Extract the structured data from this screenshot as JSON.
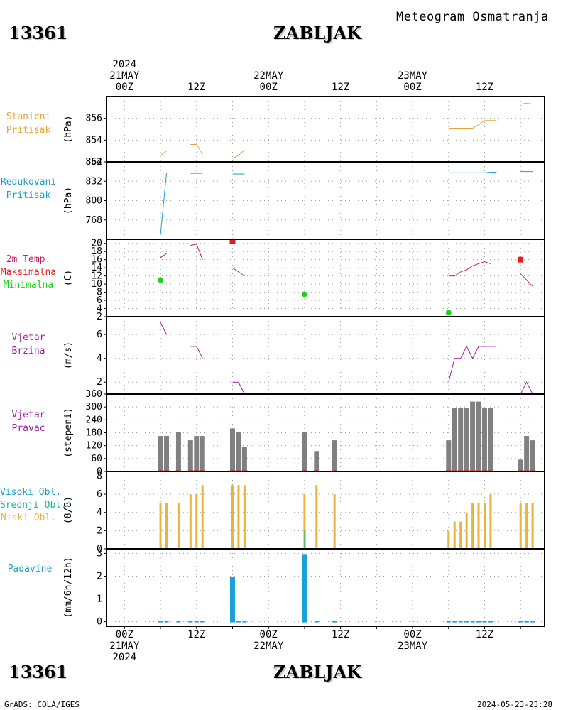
{
  "header": {
    "station_id": "13361",
    "station_name": "ZABLJAK",
    "subtitle": "Meteogram Osmatranja"
  },
  "footer": {
    "station_id": "13361",
    "station_name": "ZABLJAK",
    "credit": "GrADS: COLA/IGES",
    "timestamp": "2024-05-23-23:28"
  },
  "time_axis": {
    "start_year": "2024",
    "top_dates": [
      {
        "hour": 0,
        "date": "21MAY",
        "year": "2024"
      },
      {
        "hour": 24,
        "date": "22MAY",
        "year": ""
      },
      {
        "hour": 48,
        "date": "23MAY",
        "year": ""
      }
    ],
    "tick_labels": [
      {
        "hour": 0,
        "label": "00Z"
      },
      {
        "hour": 12,
        "label": "12Z"
      },
      {
        "hour": 24,
        "label": "00Z"
      },
      {
        "hour": 36,
        "label": "12Z"
      },
      {
        "hour": 48,
        "label": "00Z"
      },
      {
        "hour": 60,
        "label": "12Z"
      }
    ],
    "bottom_dates": [
      {
        "hour": 0,
        "date": "21MAY",
        "year": "2024"
      },
      {
        "hour": 24,
        "date": "22MAY",
        "year": ""
      },
      {
        "hour": 48,
        "date": "23MAY",
        "year": ""
      }
    ]
  },
  "colors": {
    "station_pressure": "#e8a33c",
    "reduced_pressure": "#1aa0c8",
    "temp_label": "#c81e5a",
    "temp_max": "#e81e1e",
    "temp_min": "#1ed21e",
    "wind": "#a01ea0",
    "wind_dir_bar": "#808080",
    "cloud_high": "#1aa0c8",
    "cloud_mid": "#1eb48c",
    "cloud_low": "#e8b43c",
    "precip": "#1aa0dc"
  },
  "panels": {
    "station_pressure": {
      "labels": [
        "Stanicni",
        "Pritisak"
      ],
      "unit": "(hPa)"
    },
    "reduced_pressure": {
      "labels": [
        "Redukovani",
        "Pritisak"
      ],
      "unit": "(hPa)"
    },
    "temperature": {
      "labels": [
        "2m Temp.",
        "Maksimalna",
        "Minimalna"
      ],
      "unit": "(C)"
    },
    "wind_speed": {
      "labels": [
        "Vjetar",
        "Brzina"
      ],
      "unit": "(m/s)"
    },
    "wind_dir": {
      "labels": [
        "Vjetar",
        "Pravac"
      ],
      "unit": "(stepeni)"
    },
    "clouds": {
      "labels": [
        "Visoki Obl.",
        "Srednji Obl.",
        "Niski Obl."
      ],
      "unit": "(8/8)"
    },
    "precip": {
      "labels": [
        "Padavine"
      ],
      "unit": "(mm/6h/12h)"
    }
  },
  "chart_data": [
    {
      "type": "line",
      "series": [
        {
          "points": [
            [
              6,
              852.6
            ],
            [
              7,
              853.0
            ],
            [
              11,
              853.6
            ],
            [
              12,
              853.6
            ],
            [
              13,
              852.7
            ],
            [
              18,
              852.3
            ],
            [
              19,
              852.6
            ],
            [
              20,
              853.1
            ],
            [
              54,
              855.1
            ],
            [
              55,
              855.1
            ],
            [
              56,
              855.1
            ],
            [
              57,
              855.1
            ],
            [
              58,
              855.1
            ],
            [
              59,
              855.4
            ],
            [
              60,
              855.8
            ],
            [
              61,
              855.8
            ],
            [
              62,
              855.8
            ],
            [
              66,
              857.3
            ],
            [
              67,
              857.4
            ],
            [
              68,
              857.3
            ]
          ]
        }
      ],
      "xlim": [
        -3,
        70
      ],
      "ylim": [
        852,
        858
      ],
      "yticks": [
        852,
        854,
        856
      ]
    },
    {
      "type": "line",
      "series": [
        {
          "points": [
            [
              6,
              744
            ],
            [
              7,
              846
            ],
            [
              11,
              845
            ],
            [
              12,
              845
            ],
            [
              13,
              845
            ],
            [
              18,
              844
            ],
            [
              19,
              844
            ],
            [
              20,
              844
            ],
            [
              54,
              846
            ],
            [
              55,
              846
            ],
            [
              56,
              846
            ],
            [
              57,
              846
            ],
            [
              58,
              846
            ],
            [
              59,
              846
            ],
            [
              60,
              846
            ],
            [
              61,
              847
            ],
            [
              62,
              847
            ],
            [
              66,
              848
            ],
            [
              67,
              848
            ],
            [
              68,
              848
            ]
          ]
        }
      ],
      "xlim": [
        -3,
        70
      ],
      "ylim": [
        736,
        864
      ],
      "yticks": [
        768,
        800,
        832,
        864
      ]
    },
    {
      "type": "scatter",
      "series": [
        {
          "points": [
            [
              6,
              16.5
            ],
            [
              7,
              17.5
            ],
            [
              11,
              19.5
            ],
            [
              12,
              19.8
            ],
            [
              13,
              16
            ],
            [
              18,
              14
            ],
            [
              19,
              13
            ],
            [
              20,
              12
            ],
            [
              54,
              12
            ],
            [
              55,
              12
            ],
            [
              56,
              13
            ],
            [
              57,
              13.5
            ],
            [
              58,
              14.5
            ],
            [
              59,
              15
            ],
            [
              60,
              15.5
            ],
            [
              61,
              15
            ],
            [
              62,
              null
            ],
            [
              66,
              12.5
            ],
            [
              67,
              11
            ],
            [
              68,
              9.5
            ]
          ]
        },
        {
          "points": [
            [
              18,
              20.5
            ],
            [
              66,
              16
            ]
          ]
        },
        {
          "points": [
            [
              6,
              11
            ],
            [
              30,
              7.5
            ],
            [
              54,
              3
            ]
          ]
        }
      ],
      "xlim": [
        -3,
        70
      ],
      "ylim": [
        2,
        21
      ],
      "yticks": [
        2,
        4,
        6,
        8,
        10,
        12,
        14,
        16,
        18,
        20
      ]
    },
    {
      "type": "line",
      "series": [
        {
          "points": [
            [
              6,
              7
            ],
            [
              7,
              6
            ],
            [
              11,
              5
            ],
            [
              12,
              5
            ],
            [
              13,
              4
            ],
            [
              18,
              2
            ],
            [
              19,
              2
            ],
            [
              20,
              1
            ],
            [
              54,
              2
            ],
            [
              55,
              4
            ],
            [
              56,
              4
            ],
            [
              57,
              5
            ],
            [
              58,
              4
            ],
            [
              59,
              5
            ],
            [
              60,
              5
            ],
            [
              61,
              5
            ],
            [
              62,
              5
            ],
            [
              66,
              1
            ],
            [
              67,
              2
            ],
            [
              68,
              1
            ]
          ]
        }
      ],
      "xlim": [
        -3,
        70
      ],
      "ylim": [
        1,
        7.5
      ],
      "yticks": [
        2,
        4,
        6
      ]
    },
    {
      "type": "bar",
      "series": [
        {
          "points": [
            [
              6,
              165
            ],
            [
              7,
              165
            ],
            [
              9,
              185
            ],
            [
              11,
              145
            ],
            [
              12,
              165
            ],
            [
              13,
              165
            ],
            [
              18,
              200
            ],
            [
              19,
              185
            ],
            [
              20,
              115
            ],
            [
              30,
              185
            ],
            [
              32,
              95
            ],
            [
              35,
              145
            ],
            [
              54,
              145
            ],
            [
              55,
              295
            ],
            [
              56,
              295
            ],
            [
              57,
              295
            ],
            [
              58,
              325
            ],
            [
              59,
              325
            ],
            [
              60,
              295
            ],
            [
              61,
              295
            ],
            [
              66,
              55
            ],
            [
              67,
              165
            ],
            [
              68,
              145
            ]
          ]
        }
      ],
      "xlim": [
        -3,
        70
      ],
      "ylim": [
        0,
        360
      ],
      "yticks": [
        0,
        60,
        120,
        180,
        240,
        300,
        360
      ]
    },
    {
      "type": "bar",
      "series": [
        {
          "points": [
            [
              6,
              0
            ],
            [
              7,
              0
            ],
            [
              9,
              0
            ],
            [
              11,
              0
            ],
            [
              12,
              0
            ],
            [
              13,
              0
            ],
            [
              18,
              0
            ],
            [
              19,
              0
            ],
            [
              20,
              0
            ],
            [
              30,
              0
            ],
            [
              32,
              0
            ],
            [
              35,
              0
            ],
            [
              54,
              0
            ],
            [
              55,
              0
            ],
            [
              56,
              0
            ],
            [
              57,
              0
            ],
            [
              58,
              0
            ],
            [
              59,
              0
            ],
            [
              60,
              0
            ],
            [
              61,
              0
            ],
            [
              66,
              0
            ],
            [
              67,
              0
            ],
            [
              68,
              0
            ]
          ]
        },
        {
          "points": [
            [
              6,
              0
            ],
            [
              7,
              0
            ],
            [
              9,
              0
            ],
            [
              11,
              0
            ],
            [
              12,
              0
            ],
            [
              13,
              0
            ],
            [
              18,
              0
            ],
            [
              19,
              0
            ],
            [
              20,
              0
            ],
            [
              30,
              2
            ],
            [
              32,
              0
            ],
            [
              35,
              0
            ],
            [
              54,
              0
            ],
            [
              55,
              0
            ],
            [
              56,
              0
            ],
            [
              57,
              0
            ],
            [
              58,
              0
            ],
            [
              59,
              0
            ],
            [
              60,
              0
            ],
            [
              61,
              0
            ],
            [
              66,
              0
            ],
            [
              67,
              0
            ],
            [
              68,
              0
            ]
          ]
        },
        {
          "points": [
            [
              6,
              5
            ],
            [
              7,
              5
            ],
            [
              9,
              5
            ],
            [
              11,
              6
            ],
            [
              12,
              6
            ],
            [
              13,
              7
            ],
            [
              18,
              7
            ],
            [
              19,
              7
            ],
            [
              20,
              7
            ],
            [
              30,
              6
            ],
            [
              32,
              7
            ],
            [
              35,
              6
            ],
            [
              54,
              2
            ],
            [
              55,
              3
            ],
            [
              56,
              3
            ],
            [
              57,
              4
            ],
            [
              58,
              5
            ],
            [
              59,
              5
            ],
            [
              60,
              5
            ],
            [
              61,
              6
            ],
            [
              66,
              5
            ],
            [
              67,
              5
            ],
            [
              68,
              5
            ]
          ]
        }
      ],
      "xlim": [
        -3,
        70
      ],
      "ylim": [
        0,
        8.5
      ],
      "yticks": [
        0,
        2,
        4,
        6,
        8
      ]
    },
    {
      "type": "bar",
      "series": [
        {
          "points": [
            [
              6,
              0.05
            ],
            [
              7,
              0.05
            ],
            [
              9,
              0.05
            ],
            [
              11,
              0.05
            ],
            [
              12,
              0.05
            ],
            [
              13,
              0.05
            ],
            [
              18,
              2.0
            ],
            [
              19,
              0.05
            ],
            [
              20,
              0.05
            ],
            [
              30,
              3.0
            ],
            [
              32,
              0.02
            ],
            [
              35,
              0.02
            ],
            [
              54,
              0.05
            ],
            [
              55,
              0.05
            ],
            [
              56,
              0.05
            ],
            [
              57,
              0.05
            ],
            [
              58,
              0.05
            ],
            [
              59,
              0.05
            ],
            [
              60,
              0.05
            ],
            [
              61,
              0.05
            ],
            [
              66,
              0.05
            ],
            [
              67,
              0.05
            ],
            [
              68,
              0.05
            ]
          ]
        }
      ],
      "xlim": [
        -3,
        70
      ],
      "ylim": [
        -0.2,
        3.2
      ],
      "yticks": [
        0,
        1,
        2,
        3
      ]
    }
  ]
}
